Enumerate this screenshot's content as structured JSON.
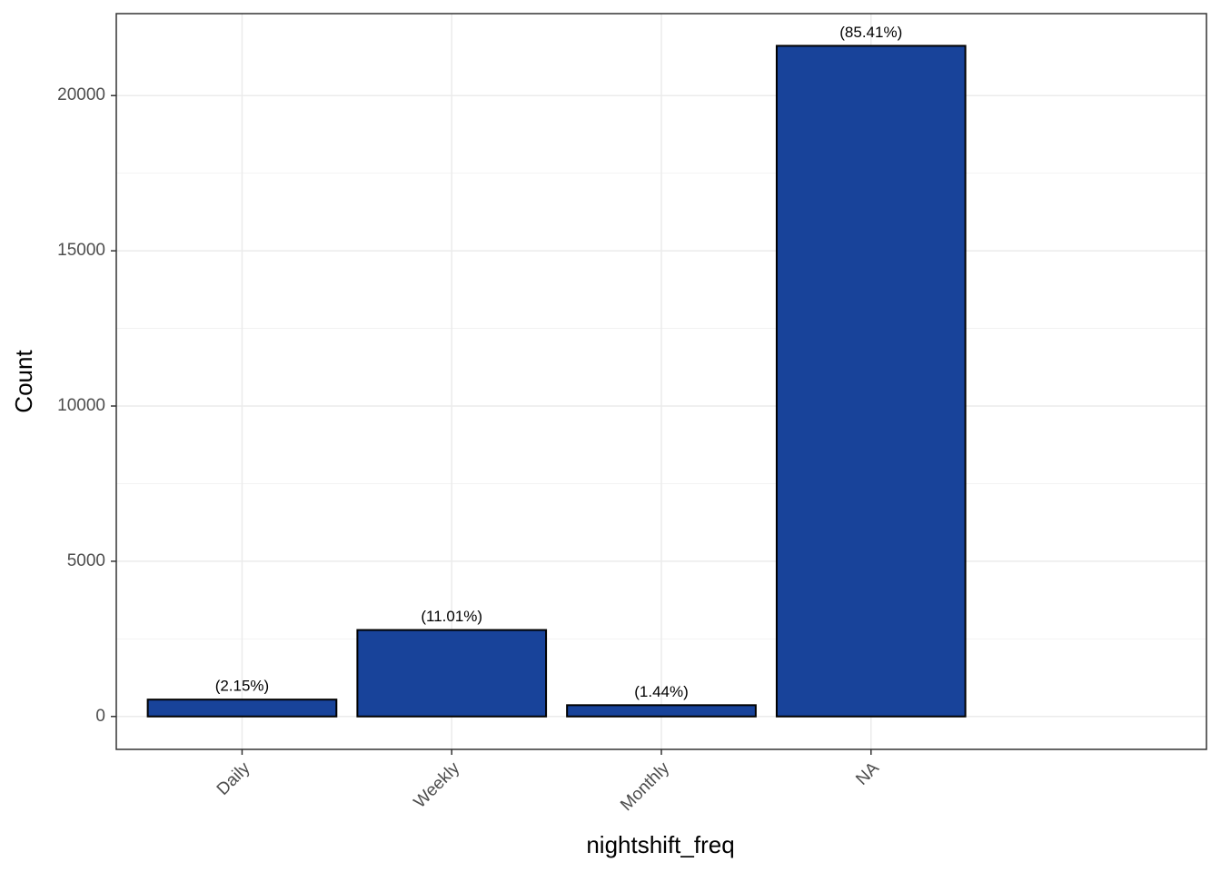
{
  "chart_data": {
    "type": "bar",
    "x_label": "nightshift_freq",
    "y_label": "Count",
    "categories": [
      "Daily",
      "Weekly",
      "Monthly",
      "NA"
    ],
    "values": [
      544,
      2785,
      364,
      21603
    ],
    "percent_labels": [
      "(2.15%)",
      "(11.01%)",
      "(1.44%)",
      "(85.41%)"
    ],
    "color": "#18439a",
    "ylim": [
      -1060,
      22640
    ],
    "yticks": [
      0,
      5000,
      10000,
      15000,
      20000
    ],
    "y_minor_gridlines": [
      2500,
      7500,
      12500,
      17500
    ],
    "grid": true
  }
}
